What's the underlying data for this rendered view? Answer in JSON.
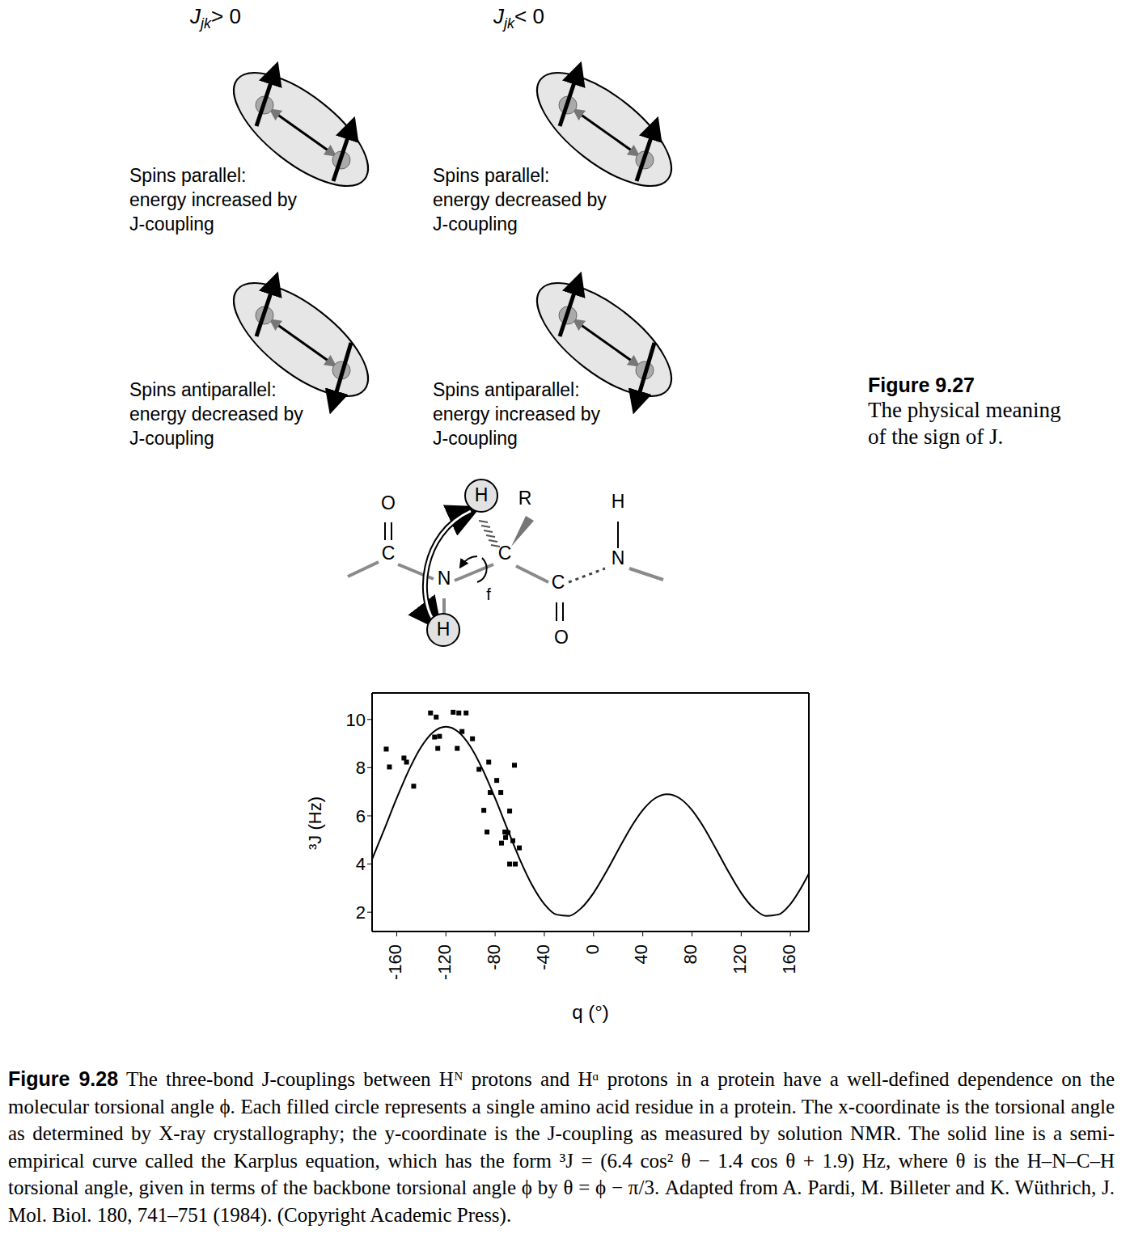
{
  "figure_9_27": {
    "panels": [
      {
        "header": {
          "symbol": "J",
          "subscript": "jk",
          "relation": "> 0"
        },
        "top": [
          "Spins parallel:",
          "energy increased by",
          "J-coupling"
        ],
        "bottom": [
          "Spins antiparallel:",
          "energy decreased by",
          "J-coupling"
        ]
      },
      {
        "header": {
          "symbol": "J",
          "subscript": "jk",
          "relation": "< 0"
        },
        "top": [
          "Spins parallel:",
          "energy decreased by",
          "J-coupling"
        ],
        "bottom": [
          "Spins antiparallel:",
          "energy increased by",
          "J-coupling"
        ]
      }
    ],
    "caption": {
      "label": "Figure 9.27",
      "lines": [
        "The physical meaning",
        "of the sign of J."
      ]
    }
  },
  "molecule": {
    "atoms": [
      "O",
      "C",
      "N",
      "H",
      "C",
      "R",
      "C",
      "O",
      "N",
      "H",
      "H"
    ],
    "torsion_label": "f"
  },
  "chart_data": {
    "type": "scatter",
    "x_label": "q (°)",
    "y_label": "³J (Hz)",
    "xlim": [
      -180,
      175
    ],
    "xticks": [
      -160,
      -120,
      -80,
      -40,
      0,
      40,
      80,
      120,
      160
    ],
    "ylim": [
      1.2,
      11.1
    ],
    "yticks": [
      2,
      4,
      6,
      8,
      10
    ],
    "grid": false,
    "series": [
      {
        "type": "line",
        "color": "#000000",
        "line_style": "solid",
        "x": [
          -180,
          -170,
          -160,
          -150,
          -140,
          -130,
          -120,
          -110,
          -100,
          -90,
          -80,
          -70,
          -60,
          -50,
          -40,
          -30,
          -20,
          -10,
          0,
          10,
          20,
          30,
          40,
          50,
          60,
          70,
          80,
          90,
          100,
          110,
          120,
          130,
          140,
          150,
          160,
          170,
          175
        ],
        "values": [
          4.2,
          5.45,
          6.73,
          7.91,
          8.87,
          9.49,
          9.7,
          9.49,
          8.87,
          7.91,
          6.73,
          5.45,
          4.2,
          3.13,
          2.34,
          1.9,
          1.85,
          2.17,
          2.8,
          3.65,
          4.58,
          5.49,
          6.24,
          6.73,
          6.9,
          6.73,
          6.24,
          5.49,
          4.58,
          3.65,
          2.8,
          2.17,
          1.85,
          1.9,
          2.34,
          3.13,
          3.6
        ]
      },
      {
        "type": "scatter",
        "color": "#000000",
        "marker": "square",
        "x": [
          -168.5,
          -165.9,
          -154.1,
          -152,
          -146.2,
          -132.5,
          -127.9,
          -129.2,
          -125.2,
          -126.6,
          -114.1,
          -109.5,
          -103.6,
          -106.9,
          -110.8,
          -98.4,
          -93.1,
          -85.2,
          -89.2,
          -78.7,
          -84,
          -75.4,
          -86.6,
          -72.1,
          -68.2,
          -74.8,
          -69.5,
          -65.6,
          -68.2,
          -63.6,
          -60.3,
          -64.3,
          -71.5
        ],
        "values": [
          8.77,
          8.03,
          8.4,
          8.23,
          7.23,
          10.27,
          10.1,
          9.27,
          9.3,
          8.8,
          10.3,
          10.27,
          10.27,
          9.5,
          8.8,
          9.2,
          7.93,
          8.23,
          6.23,
          7.47,
          6.97,
          6.97,
          5.33,
          5.33,
          6.2,
          4.87,
          5.3,
          4.97,
          4.0,
          4.0,
          4.67,
          8.1,
          5.1
        ]
      }
    ]
  },
  "figure_9_28_caption": {
    "label": "Figure 9.28",
    "text": "The three-bond J-couplings between Hᴺ protons and Hᵅ protons in a protein have a well-defined dependence on the molecular torsional angle ϕ. Each filled circle represents a single amino acid residue in a protein. The x-coordinate is the torsional angle as determined by X-ray crystallography; the y-coordinate is the J-coupling as measured by solution NMR. The solid line is a semi-empirical curve called the Karplus equation, which has the form ³J = (6.4 cos² θ − 1.4 cos θ + 1.9) Hz, where θ is the H–N–C–H torsional angle, given in terms of the backbone torsional angle ϕ by θ = ϕ − π/3. Adapted from A. Pardi, M. Billeter and K. Wüthrich, J. Mol. Biol. 180, 741–751 (1984). (Copyright Academic Press)."
  }
}
